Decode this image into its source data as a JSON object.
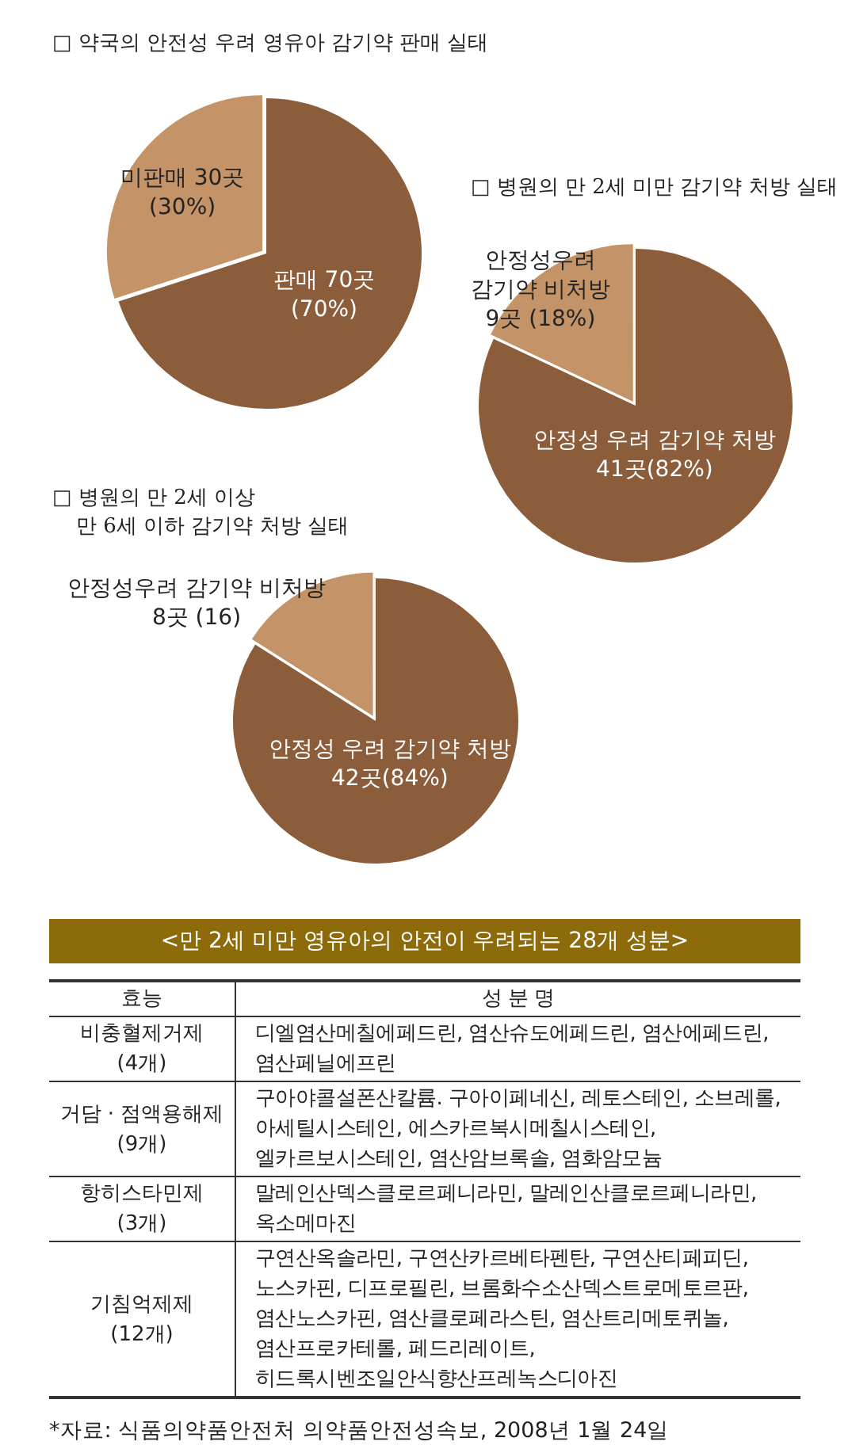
{
  "chart_data": [
    {
      "type": "pie",
      "title": "□ 약국의 안전성 우려 영유아 감기약 판매 실태",
      "categories": [
        "판매",
        "미판매"
      ],
      "values": [
        70,
        30
      ],
      "colors": [
        "#8b5d3b",
        "#c49468"
      ],
      "value_labels": [
        "70곳 (70%)",
        "30곳 (30%)"
      ]
    },
    {
      "type": "pie",
      "title": "□ 병원의 만 2세 미만 감기약 처방 실태",
      "categories": [
        "안정성 우려 감기약 처방",
        "안정성우려 감기약 비처방"
      ],
      "values": [
        41,
        9
      ],
      "colors": [
        "#8b5d3b",
        "#c49468"
      ],
      "value_labels": [
        "41곳(82%)",
        "9곳 (18%)"
      ]
    },
    {
      "type": "pie",
      "title": "□ 병원의 만 2세 이상\n만 6세 이하 감기약 처방 실태",
      "categories": [
        "안정성 우려 감기약 처방",
        "안정성우려 감기약 비처방"
      ],
      "values": [
        42,
        8
      ],
      "colors": [
        "#8b5d3b",
        "#c49468"
      ],
      "value_labels": [
        "42곳(84%)",
        "8곳 (16)"
      ]
    },
    {
      "type": "other",
      "title": "<만 2세 미만 영유아의 안전이 우려되는 28개 성분>",
      "annotations": [
        "효능",
        "성 분 명",
        "비충혈제거제\n(4개)",
        "디엘염산메칠에페드린, 염산슈도에페드린, 염산에페드린,\n염산페닐에프린",
        "거담 · 점액용해제\n(9개)",
        "구아야콜설폰산칼륨. 구아이페네신, 레토스테인, 소브레롤,\n아세틸시스테인, 에스카르복시메칠시스테인,\n엘카르보시스테인, 염산암브록솔, 염화암모늄",
        "항히스타민제\n(3개)",
        "말레인산덱스클로르페니라민, 말레인산클로르페니라민,\n옥소메마진",
        "기침억제제\n(12개)",
        "구연산옥솔라민, 구연산카르베타펜탄, 구연산티페피딘,\n노스카핀, 디프로필린, 브롬화수소산덱스트로메토르판,\n염산노스카핀, 염산클로페라스틴, 염산트리메토퀴놀,\n염산프로카테롤, 페드리레이트,\n히드록시벤조일안식향산프레녹스디아진",
        "*자료: 식품의약품안전처 의약품안전성속보, 2008년 1월 24일"
      ]
    }
  ]
}
